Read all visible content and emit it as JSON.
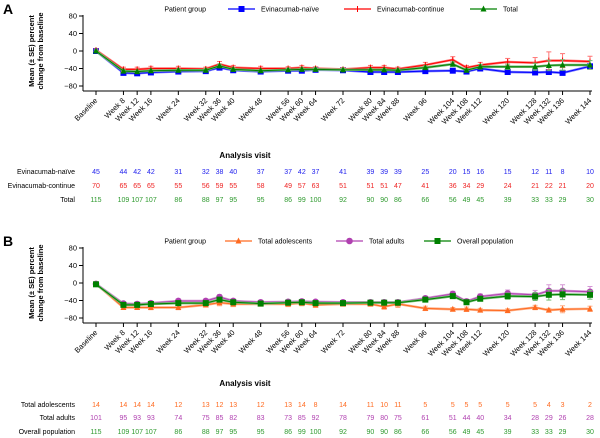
{
  "chart_data": [
    {
      "panel": "A",
      "type": "line",
      "title": "",
      "xlabel": "Analysis visit",
      "ylabel": "Mean (± SE) percent change from baseline",
      "ylim": [
        -80,
        80
      ],
      "yticks": [
        80,
        40,
        0,
        -40,
        -80
      ],
      "grid": false,
      "legend_title": "Patient group",
      "legend_position": "top",
      "categories": [
        "Baseline",
        "Week 8",
        "Week 12",
        "Week 16",
        "Week 24",
        "Week 32",
        "Week 36",
        "Week 40",
        "Week 48",
        "Week 56",
        "Week 60",
        "Week 64",
        "Week 72",
        "Week 80",
        "Week 84",
        "Week 88",
        "Week 96",
        "Week 104",
        "Week 108",
        "Week 112",
        "Week 120",
        "Week 128",
        "Week 132",
        "Week 136",
        "Week 144"
      ],
      "weeks": [
        0,
        8,
        12,
        16,
        24,
        32,
        36,
        40,
        48,
        56,
        60,
        64,
        72,
        80,
        84,
        88,
        96,
        104,
        108,
        112,
        120,
        128,
        132,
        136,
        144
      ],
      "series": [
        {
          "name": "Evinacumab-naïve",
          "color": "#0000ff",
          "marker": "square",
          "values": [
            0,
            -50,
            -51,
            -49,
            -47,
            -46,
            -38,
            -44,
            -47,
            -45,
            -45,
            -43,
            -44,
            -48,
            -48,
            -48,
            -46,
            -45,
            -47,
            -40,
            -48,
            -49,
            -48,
            -50,
            -35
          ],
          "se": [
            2,
            4,
            4,
            4,
            4,
            4,
            5,
            4,
            4,
            4,
            4,
            4,
            4,
            4,
            4,
            4,
            4,
            4,
            4,
            5,
            4,
            5,
            5,
            5,
            5
          ],
          "n": [
            "45",
            "44",
            "42",
            "42",
            "31",
            "32",
            "38",
            "40",
            "37",
            "37",
            "42",
            "37",
            "41",
            "39",
            "39",
            "39",
            "25",
            "20",
            "15",
            "16",
            "15",
            "12",
            "11",
            "8",
            "10"
          ]
        },
        {
          "name": "Evinacumab-continue",
          "color": "#ff0000",
          "marker": "plus",
          "values": [
            2,
            -42,
            -42,
            -40,
            -40,
            -41,
            -30,
            -38,
            -40,
            -40,
            -38,
            -40,
            -42,
            -38,
            -38,
            -41,
            -32,
            -20,
            -38,
            -32,
            -25,
            -27,
            -22,
            -22,
            -24
          ],
          "se": [
            3,
            5,
            5,
            5,
            5,
            4,
            6,
            5,
            5,
            4,
            5,
            4,
            4,
            5,
            5,
            4,
            6,
            7,
            5,
            6,
            8,
            12,
            20,
            16,
            12
          ],
          "n": [
            "70",
            "65",
            "65",
            "65",
            "55",
            "56",
            "59",
            "55",
            "58",
            "49",
            "57",
            "63",
            "51",
            "51",
            "51",
            "47",
            "41",
            "36",
            "34",
            "29",
            "24",
            "21",
            "22",
            "21",
            "20"
          ]
        },
        {
          "name": "Total",
          "color": "#008000",
          "marker": "triangle",
          "values": [
            0,
            -46,
            -47,
            -45,
            -44,
            -44,
            -34,
            -42,
            -45,
            -43,
            -42,
            -42,
            -43,
            -43,
            -43,
            -44,
            -38,
            -30,
            -44,
            -36,
            -36,
            -36,
            -33,
            -32,
            -32
          ],
          "se": [
            2,
            3,
            3,
            3,
            3,
            3,
            4,
            3,
            3,
            3,
            3,
            3,
            3,
            3,
            3,
            3,
            4,
            5,
            4,
            5,
            6,
            8,
            12,
            12,
            10
          ],
          "n": [
            "115",
            "109",
            "107",
            "107",
            "86",
            "88",
            "97",
            "95",
            "95",
            "86",
            "99",
            "100",
            "92",
            "90",
            "90",
            "86",
            "66",
            "56",
            "49",
            "45",
            "39",
            "33",
            "33",
            "29",
            "30"
          ]
        }
      ]
    },
    {
      "panel": "B",
      "type": "line",
      "title": "",
      "xlabel": "Analysis visit",
      "ylabel": "Mean (± SE) percent change from baseline",
      "ylim": [
        -80,
        80
      ],
      "yticks": [
        80,
        40,
        0,
        -40,
        -80
      ],
      "grid": false,
      "legend_title": "Patient group",
      "legend_position": "top",
      "categories": [
        "Baseline",
        "Week 8",
        "Week 12",
        "Week 16",
        "Week 24",
        "Week 32",
        "Week 36",
        "Week 40",
        "Week 48",
        "Week 56",
        "Week 60",
        "Week 64",
        "Week 72",
        "Week 80",
        "Week 84",
        "Week 88",
        "Week 96",
        "Week 104",
        "Week 108",
        "Week 112",
        "Week 120",
        "Week 128",
        "Week 132",
        "Week 136",
        "Week 144"
      ],
      "weeks": [
        0,
        8,
        12,
        16,
        24,
        32,
        36,
        40,
        48,
        56,
        60,
        64,
        72,
        80,
        84,
        88,
        96,
        104,
        108,
        112,
        120,
        128,
        132,
        136,
        144
      ],
      "series": [
        {
          "name": "Total adolescents",
          "color": "#ff6a20",
          "marker": "triangle",
          "values": [
            -2,
            -56,
            -56,
            -56,
            -56,
            -50,
            -45,
            -48,
            -48,
            -48,
            -46,
            -50,
            -48,
            -48,
            -54,
            -48,
            -58,
            -60,
            -60,
            -62,
            -63,
            -56,
            -62,
            -60,
            -59
          ],
          "se": [
            2,
            4,
            4,
            5,
            5,
            5,
            7,
            6,
            5,
            6,
            6,
            6,
            5,
            5,
            6,
            8,
            5,
            4,
            5,
            4,
            4,
            5,
            4,
            8,
            6
          ],
          "n": [
            "14",
            "14",
            "14",
            "14",
            "12",
            "13",
            "12",
            "13",
            "12",
            "13",
            "14",
            "8",
            "14",
            "11",
            "10",
            "11",
            "5",
            "5",
            "5",
            "5",
            "5",
            "5",
            "4",
            "3",
            "2"
          ]
        },
        {
          "name": "Total adults",
          "color": "#b040b0",
          "marker": "circle",
          "values": [
            -2,
            -47,
            -48,
            -46,
            -41,
            -41,
            -32,
            -41,
            -44,
            -43,
            -42,
            -43,
            -44,
            -44,
            -44,
            -44,
            -35,
            -25,
            -42,
            -31,
            -24,
            -27,
            -18,
            -18,
            -20
          ],
          "se": [
            2,
            3,
            3,
            3,
            4,
            4,
            5,
            4,
            4,
            4,
            4,
            4,
            4,
            4,
            4,
            4,
            5,
            6,
            5,
            6,
            8,
            10,
            14,
            14,
            12
          ],
          "n": [
            "101",
            "95",
            "93",
            "93",
            "74",
            "75",
            "85",
            "82",
            "83",
            "73",
            "85",
            "92",
            "78",
            "79",
            "80",
            "75",
            "61",
            "51",
            "44",
            "40",
            "34",
            "28",
            "29",
            "26",
            "28"
          ]
        },
        {
          "name": "Overall population",
          "color": "#008000",
          "marker": "square",
          "values": [
            -3,
            -50,
            -50,
            -48,
            -46,
            -46,
            -38,
            -44,
            -47,
            -45,
            -44,
            -46,
            -46,
            -45,
            -45,
            -45,
            -38,
            -30,
            -44,
            -36,
            -30,
            -31,
            -27,
            -26,
            -27
          ],
          "se": [
            2,
            3,
            3,
            3,
            3,
            3,
            4,
            3,
            3,
            3,
            3,
            3,
            3,
            3,
            3,
            3,
            4,
            5,
            4,
            5,
            7,
            9,
            12,
            12,
            10
          ],
          "n": [
            "115",
            "109",
            "107",
            "107",
            "86",
            "88",
            "97",
            "95",
            "95",
            "86",
            "99",
            "100",
            "92",
            "90",
            "90",
            "86",
            "66",
            "56",
            "49",
            "45",
            "39",
            "33",
            "33",
            "29",
            "30"
          ]
        }
      ]
    }
  ]
}
